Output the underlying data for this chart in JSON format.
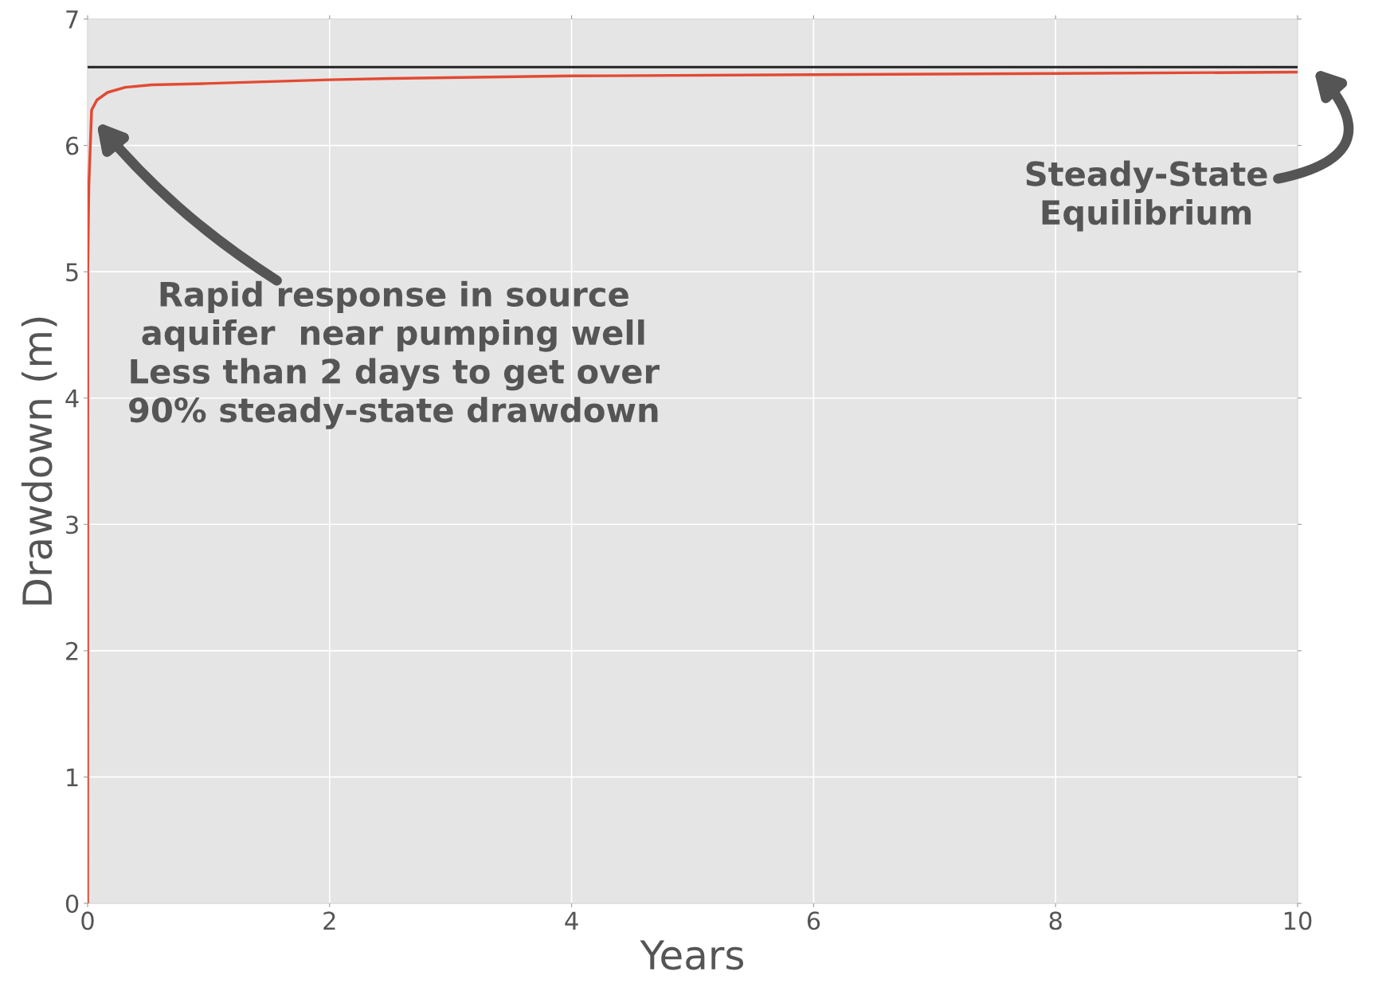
{
  "chart_data": {
    "type": "line",
    "xlabel": "Years",
    "ylabel": "Drawdown (m)",
    "x": [
      0,
      0.001,
      0.01,
      0.033,
      0.077,
      0.165,
      0.31,
      0.53,
      0.97,
      2.0,
      2.51,
      4,
      6,
      8,
      10
    ],
    "series": [
      {
        "color": "#e24a33",
        "values": [
          0,
          5.0,
          5.68,
          6.28,
          6.36,
          6.42,
          6.46,
          6.48,
          6.49,
          6.52,
          6.53,
          6.55,
          6.56,
          6.57,
          6.58
        ]
      }
    ],
    "xlim": [
      0,
      10
    ],
    "xticks": [
      0,
      2,
      4,
      6,
      8,
      10
    ],
    "ylim": [
      0,
      7
    ],
    "yticks": [
      0,
      1,
      2,
      3,
      4,
      5,
      6,
      7
    ],
    "grid": true,
    "marker": "none",
    "line_style": "solid",
    "ref_lines": [
      {
        "axis": "y",
        "value": 6.62,
        "color": "#222222",
        "line_style": "solid"
      }
    ],
    "annotations": [
      "Rapid response in source\naquifer  near pumping well\nLess than 2 days to get over\n90% steady-state drawdown",
      "Steady-State\nEquilibrium"
    ]
  }
}
